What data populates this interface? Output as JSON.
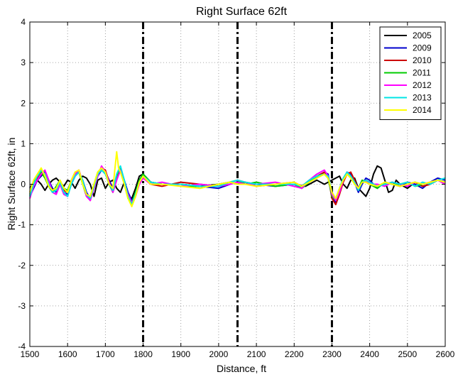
{
  "chart_data": {
    "type": "line",
    "title": "Right Surface 62ft",
    "xlabel": "Distance, ft",
    "ylabel": "Right Surface 62ft, in",
    "xlim": [
      1500,
      2600
    ],
    "ylim": [
      -4,
      4
    ],
    "xticks": [
      1500,
      1600,
      1700,
      1800,
      1900,
      2000,
      2100,
      2200,
      2300,
      2400,
      2500,
      2600
    ],
    "yticks": [
      4,
      3,
      2,
      1,
      0,
      -1,
      -2,
      -3,
      -4
    ],
    "grid": true,
    "legend_position": "top-right",
    "vertical_lines": [
      1800,
      2050,
      2300
    ],
    "series": [
      {
        "name": "2005",
        "color": "#000000",
        "x": [
          1500,
          1510,
          1520,
          1530,
          1540,
          1550,
          1560,
          1570,
          1580,
          1590,
          1600,
          1610,
          1620,
          1630,
          1640,
          1650,
          1660,
          1670,
          1680,
          1690,
          1700,
          1710,
          1720,
          1730,
          1740,
          1750,
          1760,
          1770,
          1780,
          1790,
          1800,
          1820,
          1850,
          1900,
          1950,
          2000,
          2030,
          2050,
          2070,
          2100,
          2150,
          2200,
          2230,
          2260,
          2280,
          2300,
          2310,
          2320,
          2330,
          2340,
          2350,
          2360,
          2370,
          2380,
          2390,
          2400,
          2410,
          2420,
          2430,
          2440,
          2450,
          2460,
          2470,
          2480,
          2500,
          2520,
          2540,
          2560,
          2580,
          2600
        ],
        "y": [
          -0.1,
          0.05,
          0.1,
          0.0,
          -0.15,
          0.0,
          0.1,
          0.15,
          0.05,
          -0.05,
          0.1,
          0.05,
          -0.1,
          0.1,
          0.2,
          0.15,
          0.0,
          -0.3,
          0.1,
          0.15,
          -0.1,
          0.05,
          0.1,
          -0.1,
          -0.2,
          0.05,
          -0.3,
          -0.35,
          -0.1,
          0.2,
          0.25,
          0.05,
          0.0,
          0.0,
          -0.05,
          0.0,
          0.05,
          0.1,
          0.05,
          0.0,
          0.0,
          0.0,
          -0.05,
          0.1,
          0.0,
          0.1,
          0.15,
          0.2,
          0.0,
          -0.1,
          0.1,
          0.15,
          -0.1,
          -0.2,
          -0.3,
          -0.1,
          0.25,
          0.45,
          0.4,
          0.1,
          -0.2,
          -0.15,
          0.1,
          0.0,
          -0.1,
          0.05,
          -0.05,
          0.0,
          0.1,
          0.05
        ]
      },
      {
        "name": "2009",
        "color": "#0000cc",
        "x": [
          1500,
          1510,
          1520,
          1530,
          1540,
          1550,
          1560,
          1570,
          1580,
          1590,
          1600,
          1610,
          1620,
          1630,
          1640,
          1650,
          1660,
          1670,
          1680,
          1690,
          1700,
          1710,
          1720,
          1730,
          1740,
          1750,
          1760,
          1770,
          1780,
          1790,
          1800,
          1820,
          1850,
          1900,
          1950,
          2000,
          2030,
          2050,
          2070,
          2100,
          2150,
          2200,
          2220,
          2240,
          2260,
          2280,
          2290,
          2300,
          2310,
          2320,
          2330,
          2340,
          2350,
          2360,
          2370,
          2380,
          2390,
          2400,
          2420,
          2440,
          2460,
          2480,
          2500,
          2520,
          2540,
          2560,
          2580,
          2600
        ],
        "y": [
          -0.3,
          -0.1,
          0.1,
          0.2,
          0.3,
          0.1,
          -0.1,
          -0.2,
          0.0,
          -0.2,
          -0.25,
          0.0,
          0.2,
          0.3,
          0.1,
          -0.2,
          -0.35,
          -0.1,
          0.2,
          0.35,
          0.3,
          0.1,
          -0.1,
          0.2,
          0.4,
          0.1,
          -0.2,
          -0.4,
          -0.25,
          0.1,
          0.25,
          0.05,
          0.0,
          0.0,
          -0.05,
          -0.1,
          0.0,
          0.05,
          0.0,
          0.0,
          -0.05,
          0.0,
          -0.1,
          0.05,
          0.15,
          0.3,
          0.25,
          -0.3,
          -0.45,
          -0.2,
          0.1,
          0.3,
          0.25,
          0.05,
          -0.2,
          0.0,
          0.15,
          0.1,
          -0.1,
          0.05,
          0.0,
          -0.05,
          0.05,
          0.0,
          -0.1,
          0.05,
          0.15,
          0.1
        ]
      },
      {
        "name": "2010",
        "color": "#cc0000",
        "x": [
          1500,
          1510,
          1520,
          1530,
          1540,
          1550,
          1560,
          1570,
          1580,
          1590,
          1600,
          1610,
          1620,
          1630,
          1640,
          1650,
          1660,
          1670,
          1680,
          1690,
          1700,
          1710,
          1720,
          1730,
          1740,
          1750,
          1760,
          1770,
          1780,
          1790,
          1800,
          1820,
          1850,
          1900,
          1950,
          2000,
          2030,
          2050,
          2070,
          2100,
          2150,
          2200,
          2220,
          2240,
          2260,
          2280,
          2290,
          2300,
          2310,
          2320,
          2330,
          2340,
          2350,
          2360,
          2370,
          2380,
          2390,
          2400,
          2420,
          2440,
          2460,
          2480,
          2500,
          2520,
          2540,
          2560,
          2580,
          2600
        ],
        "y": [
          -0.2,
          0.0,
          0.15,
          0.25,
          0.2,
          0.0,
          -0.15,
          -0.1,
          0.05,
          -0.15,
          -0.2,
          0.05,
          0.25,
          0.35,
          0.05,
          -0.25,
          -0.4,
          -0.05,
          0.25,
          0.4,
          0.35,
          0.05,
          -0.15,
          0.15,
          0.35,
          0.05,
          -0.3,
          -0.5,
          -0.3,
          0.05,
          0.2,
          0.0,
          -0.05,
          0.05,
          0.0,
          -0.05,
          0.05,
          0.0,
          0.05,
          -0.05,
          0.0,
          0.05,
          -0.05,
          0.1,
          0.2,
          0.3,
          0.2,
          -0.35,
          -0.5,
          -0.25,
          0.05,
          0.25,
          0.3,
          0.1,
          -0.15,
          0.05,
          0.1,
          0.05,
          -0.05,
          0.0,
          0.05,
          -0.05,
          0.0,
          0.05,
          -0.05,
          0.0,
          0.1,
          0.05
        ]
      },
      {
        "name": "2011",
        "color": "#00cc00",
        "x": [
          1500,
          1510,
          1520,
          1530,
          1540,
          1550,
          1560,
          1570,
          1580,
          1590,
          1600,
          1610,
          1620,
          1630,
          1640,
          1650,
          1660,
          1670,
          1680,
          1690,
          1700,
          1710,
          1720,
          1730,
          1740,
          1750,
          1760,
          1770,
          1780,
          1790,
          1800,
          1820,
          1850,
          1900,
          1950,
          2000,
          2030,
          2050,
          2070,
          2100,
          2150,
          2200,
          2220,
          2240,
          2260,
          2280,
          2290,
          2300,
          2310,
          2320,
          2330,
          2340,
          2350,
          2360,
          2370,
          2380,
          2390,
          2400,
          2420,
          2440,
          2460,
          2480,
          2500,
          2520,
          2540,
          2560,
          2580,
          2600
        ],
        "y": [
          -0.25,
          0.05,
          0.2,
          0.3,
          0.15,
          -0.05,
          -0.2,
          -0.05,
          0.1,
          -0.1,
          -0.15,
          0.1,
          0.3,
          0.3,
          0.0,
          -0.3,
          -0.3,
          0.0,
          0.3,
          0.4,
          0.3,
          0.0,
          -0.2,
          0.2,
          0.4,
          0.0,
          -0.35,
          -0.45,
          -0.2,
          0.1,
          0.25,
          0.05,
          0.0,
          0.0,
          -0.1,
          0.0,
          0.05,
          0.1,
          0.0,
          0.05,
          -0.05,
          0.0,
          -0.1,
          0.05,
          0.2,
          0.25,
          0.15,
          -0.3,
          -0.4,
          -0.15,
          0.1,
          0.3,
          0.2,
          0.0,
          -0.1,
          0.1,
          0.05,
          0.0,
          -0.1,
          0.05,
          0.0,
          0.0,
          0.05,
          -0.05,
          0.0,
          0.05,
          0.1,
          0.05
        ]
      },
      {
        "name": "2012",
        "color": "#ff00ff",
        "x": [
          1500,
          1510,
          1520,
          1530,
          1540,
          1550,
          1560,
          1570,
          1580,
          1590,
          1600,
          1610,
          1620,
          1630,
          1640,
          1650,
          1660,
          1670,
          1680,
          1690,
          1700,
          1710,
          1720,
          1730,
          1740,
          1750,
          1760,
          1770,
          1780,
          1790,
          1800,
          1820,
          1850,
          1900,
          1950,
          2000,
          2030,
          2050,
          2070,
          2100,
          2150,
          2200,
          2220,
          2240,
          2260,
          2280,
          2290,
          2300,
          2310,
          2320,
          2330,
          2340,
          2350,
          2360,
          2370,
          2380,
          2390,
          2400,
          2420,
          2440,
          2460,
          2480,
          2500,
          2520,
          2540,
          2560,
          2580,
          2600
        ],
        "y": [
          -0.35,
          -0.05,
          0.1,
          0.25,
          0.35,
          0.1,
          -0.2,
          -0.25,
          0.0,
          -0.25,
          -0.3,
          0.05,
          0.25,
          0.35,
          0.05,
          -0.3,
          -0.4,
          -0.1,
          0.2,
          0.45,
          0.3,
          0.05,
          -0.2,
          0.1,
          0.35,
          0.05,
          -0.25,
          -0.45,
          -0.3,
          0.0,
          0.15,
          0.0,
          0.05,
          -0.05,
          0.0,
          -0.05,
          0.0,
          0.05,
          0.0,
          0.0,
          0.05,
          -0.05,
          -0.1,
          0.1,
          0.25,
          0.35,
          0.2,
          -0.25,
          -0.4,
          -0.2,
          0.1,
          0.3,
          0.2,
          0.05,
          -0.1,
          0.05,
          0.1,
          0.0,
          0.0,
          -0.05,
          0.05,
          0.0,
          -0.05,
          0.05,
          0.0,
          0.05,
          0.1,
          0.0
        ]
      },
      {
        "name": "2013",
        "color": "#00e5e5",
        "x": [
          1500,
          1510,
          1520,
          1530,
          1540,
          1550,
          1560,
          1570,
          1580,
          1590,
          1600,
          1610,
          1620,
          1630,
          1640,
          1650,
          1660,
          1670,
          1680,
          1690,
          1700,
          1710,
          1720,
          1730,
          1740,
          1750,
          1760,
          1770,
          1780,
          1790,
          1800,
          1820,
          1850,
          1900,
          1950,
          2000,
          2030,
          2050,
          2070,
          2100,
          2150,
          2200,
          2220,
          2240,
          2260,
          2280,
          2290,
          2300,
          2310,
          2320,
          2330,
          2340,
          2350,
          2360,
          2370,
          2380,
          2390,
          2400,
          2420,
          2440,
          2460,
          2480,
          2500,
          2520,
          2540,
          2560,
          2580,
          2600
        ],
        "y": [
          -0.3,
          0.0,
          0.2,
          0.35,
          0.25,
          0.0,
          -0.2,
          -0.15,
          0.05,
          -0.2,
          -0.3,
          0.0,
          0.2,
          0.3,
          0.1,
          -0.25,
          -0.35,
          -0.05,
          0.25,
          0.35,
          0.25,
          0.0,
          -0.15,
          0.25,
          0.45,
          0.1,
          -0.3,
          -0.5,
          -0.25,
          0.05,
          0.2,
          0.05,
          0.0,
          0.0,
          -0.05,
          -0.05,
          0.05,
          0.1,
          0.05,
          0.0,
          0.0,
          0.0,
          -0.05,
          0.1,
          0.2,
          0.25,
          0.2,
          -0.2,
          -0.35,
          -0.1,
          0.15,
          0.3,
          0.2,
          0.05,
          -0.15,
          0.05,
          0.1,
          0.05,
          -0.05,
          0.0,
          0.05,
          0.0,
          0.05,
          -0.05,
          0.05,
          0.0,
          0.1,
          0.15
        ]
      },
      {
        "name": "2014",
        "color": "#ffff00",
        "x": [
          1500,
          1510,
          1520,
          1530,
          1540,
          1550,
          1560,
          1570,
          1580,
          1590,
          1600,
          1610,
          1620,
          1630,
          1640,
          1650,
          1660,
          1670,
          1680,
          1690,
          1700,
          1710,
          1720,
          1730,
          1735,
          1740,
          1750,
          1760,
          1770,
          1780,
          1790,
          1800,
          1820,
          1850,
          1900,
          1950,
          2000,
          2030,
          2050,
          2070,
          2100,
          2150,
          2200,
          2220,
          2240,
          2260,
          2280,
          2290,
          2300,
          2310,
          2320,
          2330,
          2340,
          2350,
          2360,
          2370,
          2380,
          2390,
          2400,
          2420,
          2440,
          2460,
          2480,
          2500,
          2520,
          2540,
          2560,
          2580,
          2600
        ],
        "y": [
          -0.2,
          0.1,
          0.25,
          0.4,
          0.2,
          -0.05,
          -0.15,
          -0.1,
          0.1,
          -0.1,
          -0.2,
          0.1,
          0.3,
          0.35,
          0.0,
          -0.25,
          -0.3,
          0.0,
          0.3,
          0.4,
          0.3,
          0.0,
          -0.1,
          0.8,
          0.4,
          0.3,
          0.0,
          -0.35,
          -0.55,
          -0.3,
          0.05,
          0.2,
          0.0,
          0.0,
          -0.05,
          -0.1,
          0.0,
          0.05,
          0.0,
          0.0,
          -0.05,
          0.0,
          0.05,
          -0.05,
          0.05,
          0.15,
          0.25,
          0.15,
          -0.2,
          -0.35,
          -0.1,
          0.1,
          0.25,
          0.15,
          0.0,
          -0.1,
          0.05,
          0.05,
          0.0,
          -0.05,
          0.05,
          0.0,
          -0.05,
          0.0,
          0.05,
          0.0,
          0.05,
          0.1,
          0.05
        ]
      }
    ]
  }
}
